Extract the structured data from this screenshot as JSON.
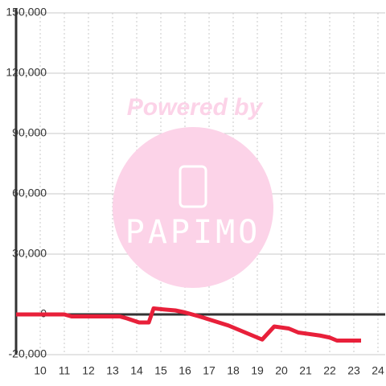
{
  "chart_data": {
    "type": "line",
    "annotations": [
      "Powered by",
      "PAPIMO"
    ],
    "x": [
      9.0,
      11.0,
      11.3,
      13.3,
      13.6,
      14.1,
      14.5,
      14.7,
      15.1,
      15.6,
      16.0,
      16.3,
      16.6,
      17.0,
      17.4,
      17.8,
      18.3,
      18.8,
      19.2,
      19.7,
      20.3,
      20.7,
      21.6,
      22.0,
      22.3,
      23.3
    ],
    "series": [
      {
        "color": "#e8203a",
        "values": [
          0,
          0,
          -1000,
          -1000,
          -2000,
          -4000,
          -4000,
          3000,
          2500,
          2000,
          1000,
          0,
          -1000,
          -2500,
          -4000,
          -5500,
          -8000,
          -10500,
          -12500,
          -6000,
          -7000,
          -9000,
          -10500,
          -11500,
          -13000,
          -13000
        ]
      }
    ],
    "xlim": [
      9,
      24.3
    ],
    "xticks": [
      10,
      11,
      12,
      13,
      14,
      15,
      16,
      17,
      18,
      19,
      20,
      21,
      22,
      23,
      24
    ],
    "ylim": [
      -20000,
      150000
    ],
    "yticks": [
      {
        "value": -20000,
        "label": "-20,000"
      },
      0,
      {
        "value": 30000,
        "label": "30,000"
      },
      {
        "value": 60000,
        "label": "60,000"
      },
      {
        "value": 90000,
        "label": "90,000"
      },
      {
        "value": 120000,
        "label": "120,000"
      },
      {
        "value": 150000,
        "label": "150,000"
      }
    ],
    "grid": true
  }
}
